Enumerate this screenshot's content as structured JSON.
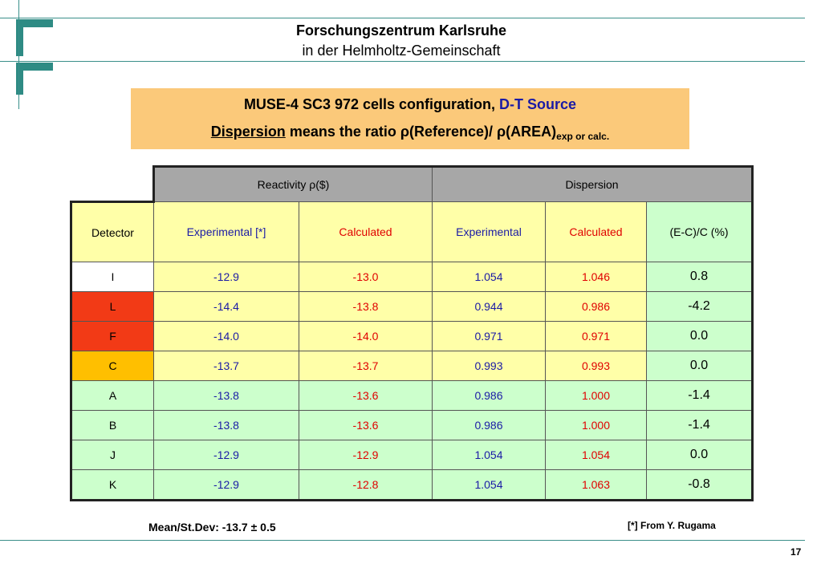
{
  "header": {
    "line1": "Forschungszentrum Karlsruhe",
    "line2": "in der Helmholtz-Gemeinschaft"
  },
  "banner": {
    "title_main": "MUSE-4 SC3 972 cells configuration, ",
    "title_source": "D-T Source",
    "dispersion_word": "Dispersion",
    "dispersion_text": " means the ratio ρ(Reference)/ ρ(AREA)",
    "dispersion_sub": "exp or calc."
  },
  "table": {
    "group_headers": [
      "Reactivity ρ($)",
      "Dispersion"
    ],
    "columns": [
      "Detector",
      "Experimental [*]",
      "Calculated",
      "Experimental",
      "Calculated",
      "(E-C)/C (%)"
    ],
    "rows": [
      {
        "detector": "I",
        "react_exp": "-12.9",
        "react_calc": "-13.0",
        "disp_exp": "1.054",
        "disp_calc": "1.046",
        "diff": "0.8"
      },
      {
        "detector": "L",
        "react_exp": "-14.4",
        "react_calc": "-13.8",
        "disp_exp": "0.944",
        "disp_calc": "0.986",
        "diff": "-4.2"
      },
      {
        "detector": "F",
        "react_exp": "-14.0",
        "react_calc": "-14.0",
        "disp_exp": "0.971",
        "disp_calc": "0.971",
        "diff": "0.0"
      },
      {
        "detector": "C",
        "react_exp": "-13.7",
        "react_calc": "-13.7",
        "disp_exp": "0.993",
        "disp_calc": "0.993",
        "diff": "0.0"
      },
      {
        "detector": "A",
        "react_exp": "-13.8",
        "react_calc": "-13.6",
        "disp_exp": "0.986",
        "disp_calc": "1.000",
        "diff": "-1.4"
      },
      {
        "detector": "B",
        "react_exp": "-13.8",
        "react_calc": "-13.6",
        "disp_exp": "0.986",
        "disp_calc": "1.000",
        "diff": "-1.4"
      },
      {
        "detector": "J",
        "react_exp": "-12.9",
        "react_calc": "-12.9",
        "disp_exp": "1.054",
        "disp_calc": "1.054",
        "diff": "0.0"
      },
      {
        "detector": "K",
        "react_exp": "-12.9",
        "react_calc": "-12.8",
        "disp_exp": "1.054",
        "disp_calc": "1.063",
        "diff": "-0.8"
      }
    ]
  },
  "footer": {
    "mean": "Mean/St.Dev: -13.7 ± 0.5",
    "reference": "[*] From Y. Rugama",
    "page": "17"
  },
  "colors": {
    "accent_teal": "#2e8b84",
    "banner": "#fbc97a",
    "experimental_text": "#1a1aa6",
    "calculated_text": "#e00000",
    "cell_yellow": "#ffffa8",
    "cell_green": "#ccffcc",
    "detector_red": "#f23a16",
    "detector_orange": "#ffbf00"
  }
}
